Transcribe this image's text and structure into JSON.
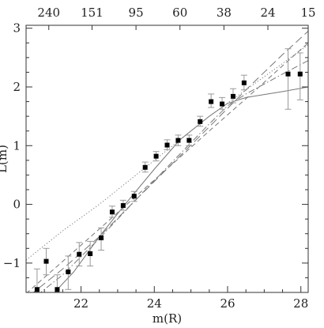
{
  "chart_data": {
    "type": "scatter",
    "xlabel": "m(R)",
    "ylabel": "L(m)",
    "xlim": [
      20.5,
      28.2
    ],
    "ylim": [
      -1.5,
      3.05
    ],
    "x_ticks": [
      22,
      24,
      26,
      28
    ],
    "x_tick_labels": [
      "22",
      "24",
      "26",
      "28"
    ],
    "y_ticks": [
      -1,
      0,
      1,
      2,
      3
    ],
    "y_tick_labels": [
      "−1",
      "0",
      "1",
      "2",
      "3"
    ],
    "top_axis": {
      "labels": [
        "240",
        "151",
        "95",
        "60",
        "38",
        "24",
        "15"
      ],
      "positions_x": [
        21.12,
        22.3,
        23.5,
        24.7,
        25.9,
        27.1,
        28.2
      ]
    },
    "grid": false,
    "series": [
      {
        "style": "points-with-errorbars",
        "points": [
          {
            "x": 20.8,
            "y": -1.45,
            "lo": -1.6,
            "hi": -1.1
          },
          {
            "x": 21.05,
            "y": -0.97,
            "lo": -1.2,
            "hi": -0.75
          },
          {
            "x": 21.35,
            "y": -1.45,
            "lo": -1.6,
            "hi": -1.2
          },
          {
            "x": 21.65,
            "y": -1.15,
            "lo": -1.45,
            "hi": -0.88
          },
          {
            "x": 21.95,
            "y": -0.85,
            "lo": -1.05,
            "hi": -0.65
          },
          {
            "x": 22.25,
            "y": -0.84,
            "lo": -1.05,
            "hi": -0.63
          },
          {
            "x": 22.55,
            "y": -0.57,
            "lo": -0.78,
            "hi": -0.4
          },
          {
            "x": 22.85,
            "y": -0.13,
            "lo": -0.22,
            "hi": -0.03
          },
          {
            "x": 23.15,
            "y": -0.02,
            "lo": -0.1,
            "hi": 0.07
          },
          {
            "x": 23.45,
            "y": 0.14,
            "lo": 0.05,
            "hi": 0.22
          },
          {
            "x": 23.75,
            "y": 0.63,
            "lo": 0.55,
            "hi": 0.72
          },
          {
            "x": 24.05,
            "y": 0.82,
            "lo": 0.74,
            "hi": 0.9
          },
          {
            "x": 24.35,
            "y": 1.01,
            "lo": 0.93,
            "hi": 1.1
          },
          {
            "x": 24.65,
            "y": 1.09,
            "lo": 1.0,
            "hi": 1.18
          },
          {
            "x": 24.95,
            "y": 1.09,
            "lo": 1.0,
            "hi": 1.18
          },
          {
            "x": 25.25,
            "y": 1.41,
            "lo": 1.33,
            "hi": 1.5
          },
          {
            "x": 25.55,
            "y": 1.75,
            "lo": 1.65,
            "hi": 1.88
          },
          {
            "x": 25.85,
            "y": 1.71,
            "lo": 1.62,
            "hi": 1.82
          },
          {
            "x": 26.15,
            "y": 1.84,
            "lo": 1.73,
            "hi": 1.97
          },
          {
            "x": 26.45,
            "y": 2.07,
            "lo": 1.95,
            "hi": 2.2
          },
          {
            "x": 27.65,
            "y": 2.22,
            "lo": 1.62,
            "hi": 2.65
          },
          {
            "x": 27.98,
            "y": 2.22,
            "lo": 1.78,
            "hi": 2.58
          }
        ]
      },
      {
        "style": "dotted",
        "points": [
          [
            20.5,
            -0.95
          ],
          [
            21.5,
            -0.45
          ],
          [
            22.5,
            0.0
          ],
          [
            23.5,
            0.5
          ],
          [
            24.5,
            1.0
          ],
          [
            25.5,
            1.5
          ],
          [
            26.5,
            1.95
          ],
          [
            27.5,
            2.4
          ],
          [
            28.2,
            2.72
          ]
        ]
      },
      {
        "style": "dashed",
        "points": [
          [
            20.5,
            -1.52
          ],
          [
            21.5,
            -0.97
          ],
          [
            22.5,
            -0.42
          ],
          [
            23.5,
            0.14
          ],
          [
            24.5,
            0.69
          ],
          [
            25.5,
            1.25
          ],
          [
            26.5,
            1.8
          ],
          [
            27.5,
            2.36
          ],
          [
            28.2,
            2.75
          ]
        ]
      },
      {
        "style": "long-dashed",
        "points": [
          [
            20.6,
            -1.55
          ],
          [
            21.5,
            -1.1
          ],
          [
            22.5,
            -0.55
          ],
          [
            23.5,
            0.08
          ],
          [
            24.5,
            0.7
          ],
          [
            25.5,
            1.32
          ],
          [
            26.5,
            1.95
          ],
          [
            27.5,
            2.55
          ],
          [
            28.2,
            2.95
          ]
        ]
      },
      {
        "style": "dash-dot",
        "points": [
          [
            20.8,
            -1.55
          ],
          [
            21.5,
            -1.2
          ],
          [
            22.5,
            -0.58
          ],
          [
            23.5,
            0.08
          ],
          [
            24.5,
            0.73
          ],
          [
            25.5,
            1.37
          ],
          [
            26.0,
            1.68
          ],
          [
            26.5,
            1.88
          ],
          [
            27.5,
            2.22
          ],
          [
            28.2,
            2.45
          ]
        ]
      },
      {
        "style": "solid",
        "points": [
          [
            21.2,
            -1.55
          ],
          [
            21.8,
            -1.15
          ],
          [
            22.5,
            -0.55
          ],
          [
            23.2,
            0.0
          ],
          [
            24.0,
            0.6
          ],
          [
            24.7,
            1.1
          ],
          [
            25.5,
            1.5
          ],
          [
            26.0,
            1.72
          ],
          [
            26.5,
            1.82
          ],
          [
            27.5,
            1.92
          ],
          [
            28.2,
            2.0
          ]
        ]
      }
    ]
  }
}
